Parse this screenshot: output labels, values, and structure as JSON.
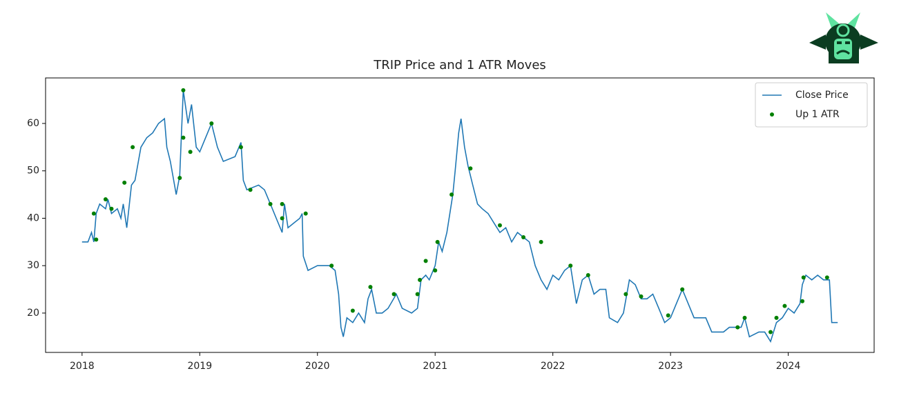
{
  "chart_data": {
    "type": "line",
    "title": "TRIP Price and 1 ATR Moves",
    "xlim": [
      2017.69,
      2024.73
    ],
    "xticks": [
      2018,
      2019,
      2020,
      2021,
      2022,
      2023,
      2024
    ],
    "ylim": [
      11.7,
      69.6
    ],
    "yticks": [
      20,
      30,
      40,
      50,
      60
    ],
    "legend": "upper right",
    "series": [
      {
        "name": "Close Price",
        "type": "line",
        "color": "#1f77b4",
        "x": [
          2018.0,
          2018.05,
          2018.08,
          2018.1,
          2018.12,
          2018.15,
          2018.2,
          2018.22,
          2018.25,
          2018.3,
          2018.33,
          2018.35,
          2018.38,
          2018.42,
          2018.45,
          2018.5,
          2018.55,
          2018.6,
          2018.65,
          2018.7,
          2018.72,
          2018.75,
          2018.8,
          2018.83,
          2018.86,
          2018.9,
          2018.93,
          2018.97,
          2019.0,
          2019.05,
          2019.1,
          2019.15,
          2019.2,
          2019.3,
          2019.35,
          2019.37,
          2019.4,
          2019.5,
          2019.55,
          2019.6,
          2019.65,
          2019.7,
          2019.72,
          2019.75,
          2019.8,
          2019.85,
          2019.87,
          2019.88,
          2019.92,
          2020.0,
          2020.1,
          2020.15,
          2020.18,
          2020.2,
          2020.22,
          2020.25,
          2020.3,
          2020.35,
          2020.4,
          2020.43,
          2020.46,
          2020.5,
          2020.55,
          2020.6,
          2020.67,
          2020.72,
          2020.8,
          2020.85,
          2020.88,
          2020.92,
          2020.95,
          2021.0,
          2021.03,
          2021.06,
          2021.1,
          2021.15,
          2021.17,
          2021.2,
          2021.22,
          2021.25,
          2021.28,
          2021.32,
          2021.36,
          2021.4,
          2021.45,
          2021.5,
          2021.55,
          2021.6,
          2021.65,
          2021.7,
          2021.75,
          2021.8,
          2021.85,
          2021.9,
          2021.95,
          2022.0,
          2022.05,
          2022.1,
          2022.15,
          2022.2,
          2022.25,
          2022.3,
          2022.35,
          2022.4,
          2022.45,
          2022.48,
          2022.55,
          2022.6,
          2022.65,
          2022.7,
          2022.75,
          2022.8,
          2022.85,
          2022.9,
          2022.95,
          2023.0,
          2023.05,
          2023.1,
          2023.15,
          2023.2,
          2023.3,
          2023.35,
          2023.45,
          2023.5,
          2023.6,
          2023.63,
          2023.67,
          2023.75,
          2023.8,
          2023.85,
          2023.9,
          2023.95,
          2024.0,
          2024.05,
          2024.1,
          2024.12,
          2024.15,
          2024.2,
          2024.25,
          2024.3,
          2024.35,
          2024.37,
          2024.42
        ],
        "values": [
          35,
          35,
          37,
          35,
          41,
          43,
          42,
          44,
          41,
          42,
          40,
          43,
          38,
          47,
          48,
          55,
          57,
          58,
          60,
          61,
          55,
          52,
          45,
          49,
          67,
          60,
          64,
          55,
          54,
          57,
          60,
          55,
          52,
          53,
          56,
          48,
          46,
          47,
          46,
          43,
          40,
          37,
          43,
          38,
          39,
          40,
          41,
          32,
          29,
          30,
          30,
          29,
          24,
          17,
          15,
          19,
          18,
          20,
          18,
          23,
          25,
          20,
          20,
          21,
          24,
          21,
          20,
          21,
          27,
          28,
          27,
          30,
          35,
          33,
          37,
          45,
          50,
          58,
          61,
          55,
          51,
          47,
          43,
          42,
          41,
          39,
          37,
          38,
          35,
          37,
          36,
          35,
          30,
          27,
          25,
          28,
          27,
          29,
          30,
          22,
          27,
          28,
          24,
          25,
          25,
          19,
          18,
          20,
          27,
          26,
          23,
          23,
          24,
          21,
          18,
          19,
          22,
          25,
          22,
          19,
          19,
          16,
          16,
          17,
          17,
          19,
          15,
          16,
          16,
          14,
          18,
          19,
          21,
          20,
          22,
          26,
          28,
          27,
          28,
          27,
          27,
          18,
          18
        ]
      },
      {
        "name": "Up 1 ATR",
        "type": "scatter",
        "color": "#008000",
        "x": [
          2018.1,
          2018.12,
          2018.2,
          2018.25,
          2018.36,
          2018.43,
          2018.83,
          2018.86,
          2018.86,
          2018.92,
          2019.1,
          2019.35,
          2019.43,
          2019.6,
          2019.7,
          2019.7,
          2019.9,
          2020.12,
          2020.3,
          2020.45,
          2020.65,
          2020.85,
          2020.87,
          2020.92,
          2021.0,
          2021.02,
          2021.14,
          2021.3,
          2021.55,
          2021.75,
          2021.9,
          2022.15,
          2022.3,
          2022.62,
          2022.75,
          2022.98,
          2023.1,
          2023.57,
          2023.63,
          2023.85,
          2023.9,
          2023.97,
          2024.12,
          2024.13,
          2024.33
        ],
        "values": [
          41,
          35.5,
          44,
          42,
          47.5,
          55,
          48.5,
          57,
          67,
          54,
          60,
          55,
          46,
          43,
          43,
          40,
          41,
          30,
          20.5,
          25.5,
          24,
          24,
          27,
          31,
          29,
          35,
          45,
          50.5,
          38.5,
          36,
          35,
          30,
          28,
          24,
          23.5,
          19.5,
          25,
          17,
          19,
          16,
          19,
          21.5,
          22.5,
          27.5,
          27.5
        ]
      }
    ]
  }
}
